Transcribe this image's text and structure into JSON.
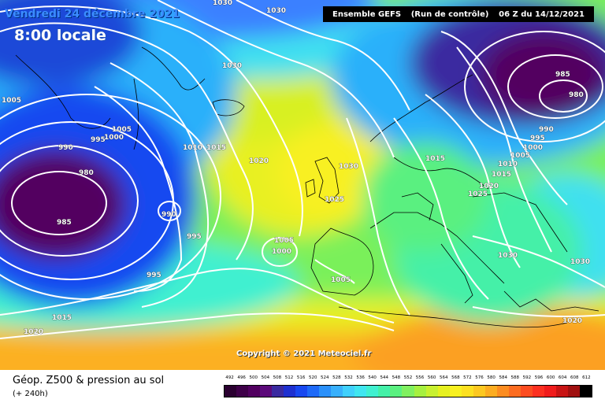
{
  "header": {
    "date": "Vendredi 24 décembre 2021",
    "time": "8:00 locale",
    "model": "Ensemble GEFS",
    "run": "(Run de contrôle)",
    "issued": "06 Z du 14/12/2021"
  },
  "copyright": "Copyright © 2021 Meteociel.fr",
  "legend": {
    "title": "Géop. Z500 & pression au sol",
    "subtitle": "(+ 240h)",
    "scale_values": [
      "492",
      "496",
      "500",
      "504",
      "508",
      "512",
      "516",
      "520",
      "524",
      "528",
      "532",
      "536",
      "540",
      "544",
      "548",
      "552",
      "556",
      "560",
      "564",
      "568",
      "572",
      "576",
      "580",
      "584",
      "588",
      "592",
      "596",
      "600",
      "604",
      "608",
      "612"
    ],
    "scale_colors": [
      "#2a0030",
      "#3e0048",
      "#520060",
      "#5c0a7a",
      "#3a2aa0",
      "#1e30d0",
      "#1848f0",
      "#1e6af8",
      "#2a90fa",
      "#38b0fc",
      "#40d0fc",
      "#40e6f0",
      "#40f0d0",
      "#44f0a8",
      "#5af080",
      "#80f060",
      "#a6f040",
      "#c8f030",
      "#e6f020",
      "#f8f020",
      "#fce020",
      "#fcc820",
      "#fcac20",
      "#fc8c20",
      "#fc6c20",
      "#fc4c20",
      "#fc3020",
      "#f01c1c",
      "#c81414",
      "#a01010",
      "#000000"
    ]
  },
  "isobars": [
    "1030",
    "1030",
    "1030",
    "1005",
    "1005",
    "995",
    "1000",
    "990",
    "980",
    "985",
    "990",
    "995",
    "995",
    "1010",
    "1015",
    "1020",
    "1005",
    "1000",
    "1030",
    "1025",
    "1005",
    "1015",
    "1020",
    "1025",
    "1030",
    "985",
    "980",
    "990",
    "995",
    "1000",
    "1005",
    "1010",
    "1015",
    "1030",
    "1015",
    "1020",
    "1020"
  ],
  "colors": {
    "land_border": "#000000",
    "isobar": "#ffffff",
    "low_core": "#4a0a4e"
  }
}
